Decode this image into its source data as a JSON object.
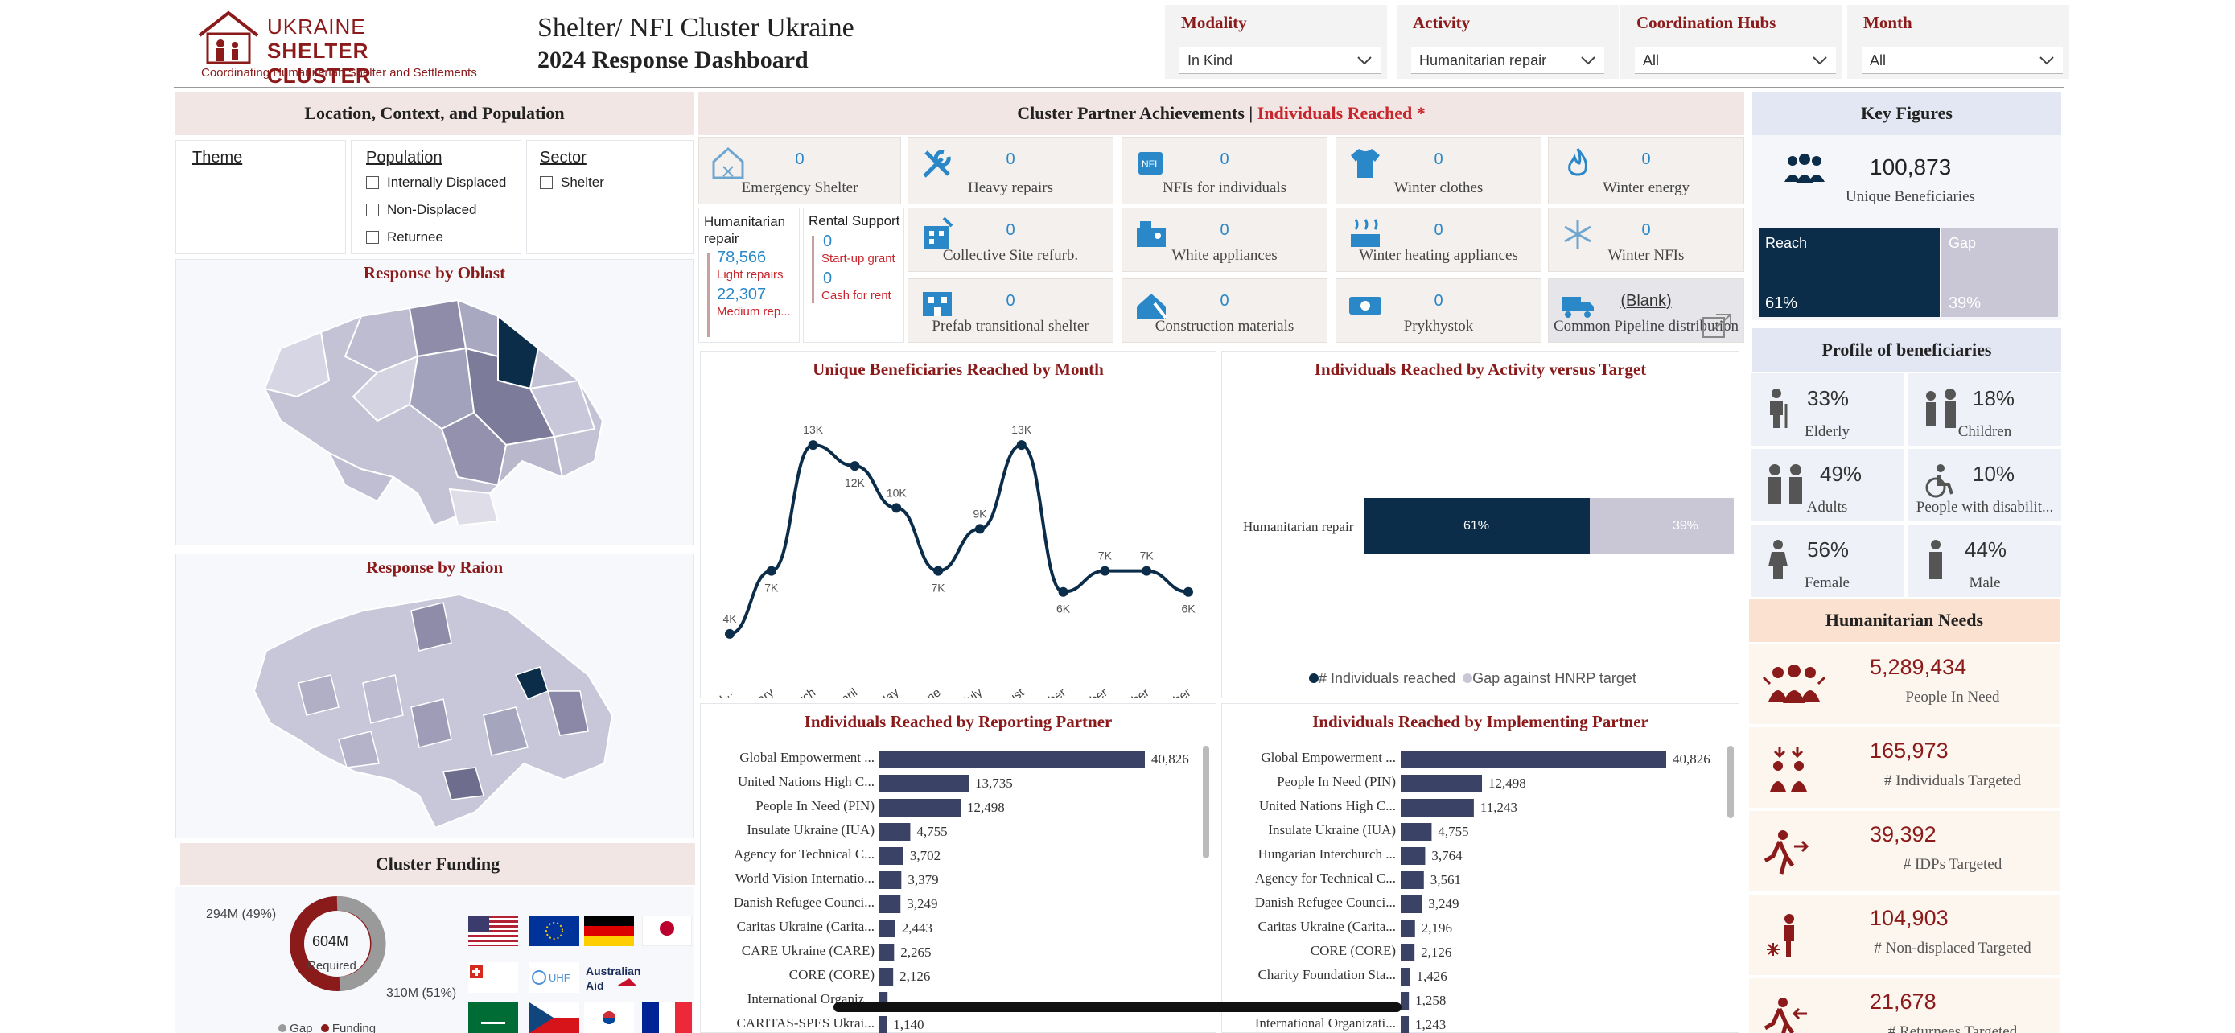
{
  "header": {
    "logo_line1": "UKRAINE",
    "logo_line2": "SHELTER CLUSTER",
    "logo_tagline": "Coordinating Humanitarian Shelter and Settlements",
    "title": "Shelter/ NFI Cluster Ukraine",
    "subtitle": "2024 Response Dashboard"
  },
  "filters": [
    {
      "label": "Modality",
      "value": "In Kind"
    },
    {
      "label": "Activity",
      "value": "Humanitarian repair"
    },
    {
      "label": "Coordination Hubs",
      "value": "All"
    },
    {
      "label": "Month",
      "value": "All"
    }
  ],
  "left": {
    "section_title": "Location, Context, and Population",
    "theme_label": "Theme",
    "population_label": "Population",
    "population_options": [
      "Internally Displaced",
      "Non-Displaced",
      "Returnee"
    ],
    "sector_label": "Sector",
    "sector_options": [
      "Shelter"
    ],
    "oblast_title": "Response by Oblast",
    "raion_title": "Response by Raion",
    "funding_title": "Cluster Funding",
    "funding": {
      "center_value": "604M",
      "center_label": "Required",
      "gap_label": "294M (49%)",
      "funding_label": "310M (51%)",
      "legend": [
        "Gap",
        "Funding"
      ]
    }
  },
  "achievements": {
    "title_prefix": "Cluster Partner Achievements | ",
    "title_highlight": "Individuals Reached *",
    "tiles": [
      {
        "label": "Emergency Shelter",
        "value": "0",
        "icon": "house-icon"
      },
      {
        "label": "Heavy repairs",
        "value": "0",
        "icon": "tools-icon"
      },
      {
        "label": "NFIs for individuals",
        "value": "0",
        "icon": "nfi-icon"
      },
      {
        "label": "Winter clothes",
        "value": "0",
        "icon": "shirt-icon"
      },
      {
        "label": "Winter energy",
        "value": "0",
        "icon": "flame-icon"
      },
      {
        "label": "Collective Site refurb.",
        "value": "0",
        "icon": "building-icon"
      },
      {
        "label": "White appliances",
        "value": "0",
        "icon": "appliance-icon"
      },
      {
        "label": "Winter heating appliances",
        "value": "0",
        "icon": "heating-icon"
      },
      {
        "label": "Winter NFIs",
        "value": "0",
        "icon": "snowflake-icon"
      },
      {
        "label": "Prefab transitional shelter",
        "value": "0",
        "icon": "prefab-icon"
      },
      {
        "label": "Construction materials",
        "value": "0",
        "icon": "construction-icon"
      },
      {
        "label": "Prykhystok",
        "value": "0",
        "icon": "cash-icon"
      },
      {
        "label": "Common Pipeline distribution",
        "value": "(Blank)",
        "icon": "truck-icon"
      }
    ],
    "hum_repair": {
      "title": "Humanitarian repair",
      "v1": "78,566",
      "l1": "Light repairs",
      "v2": "22,307",
      "l2": "Medium rep..."
    },
    "rental": {
      "title": "Rental Support",
      "v1": "0",
      "l1": "Start-up grant",
      "v2": "0",
      "l2": "Cash for rent"
    }
  },
  "line_chart_title": "Unique Beneficiaries Reached by Month",
  "activity_chart": {
    "title": "Individuals Reached by Activity versus Target",
    "category": "Humanitarian repair",
    "reach_label": "61%",
    "gap_label": "39%",
    "legend": [
      "# Individuals reached",
      "Gap against HNRP target"
    ]
  },
  "reporting_title": "Individuals Reached by Reporting Partner",
  "implementing_title": "Individuals Reached by Implementing Partner",
  "chart_data": [
    {
      "type": "line",
      "title": "Unique Beneficiaries Reached by Month",
      "categories": [
        "January",
        "February",
        "March",
        "April",
        "May",
        "June",
        "July",
        "August",
        "September",
        "October",
        "November",
        "December"
      ],
      "category_labels": [
        "Janu...",
        "February",
        "March",
        "April",
        "May",
        "June",
        "July",
        "August",
        "September",
        "October",
        "November",
        "December"
      ],
      "values": [
        4000,
        7000,
        13000,
        12000,
        10000,
        7000,
        9000,
        13000,
        6000,
        7000,
        7000,
        6000
      ],
      "data_labels": [
        "4K",
        "7K",
        "13K",
        "12K",
        "10K",
        "7K",
        "9K",
        "13K",
        "6K",
        "7K",
        "7K",
        "6K"
      ]
    },
    {
      "type": "bar",
      "title": "Individuals Reached by Activity versus Target",
      "categories": [
        "Humanitarian repair"
      ],
      "series": [
        {
          "name": "# Individuals reached",
          "values": [
            61
          ]
        },
        {
          "name": "Gap against HNRP target",
          "values": [
            39
          ]
        }
      ]
    },
    {
      "type": "bar",
      "title": "Individuals Reached by Reporting Partner",
      "categories": [
        "Global Empowerment ...",
        "United Nations High C...",
        "People In Need (PIN)",
        "Insulate Ukraine (IUA)",
        "Agency for Technical C...",
        "World Vision Internatio...",
        "Danish Refugee Counci...",
        "Caritas Ukraine (Carita...",
        "CARE Ukraine (CARE)",
        "CORE (CORE)",
        "International Organiz...",
        "CARITAS-SPES Ukrai..."
      ],
      "values": [
        40826,
        13735,
        12498,
        4755,
        3702,
        3379,
        3249,
        2443,
        2265,
        2126,
        1263,
        1140
      ],
      "value_labels": [
        "40,826",
        "13,735",
        "12,498",
        "4,755",
        "3,702",
        "3,379",
        "3,249",
        "2,443",
        "2,265",
        "2,126",
        "",
        "1,140"
      ]
    },
    {
      "type": "bar",
      "title": "Individuals Reached by Implementing Partner",
      "categories": [
        "Global Empowerment ...",
        "People In Need (PIN)",
        "United Nations High C...",
        "Insulate Ukraine (IUA)",
        "Hungarian Interchurch ...",
        "Agency for Technical C...",
        "Danish Refugee Counci...",
        "Caritas Ukraine (Carita...",
        "CORE (CORE)",
        "Charity Foundation Sta...",
        "",
        "International Organizati..."
      ],
      "values": [
        40826,
        12498,
        11243,
        4755,
        3764,
        3561,
        3249,
        2196,
        2126,
        1426,
        1258,
        1243
      ],
      "value_labels": [
        "40,826",
        "12,498",
        "11,243",
        "4,755",
        "3,764",
        "3,561",
        "3,249",
        "2,196",
        "2,126",
        "1,426",
        "1,258",
        "1,243"
      ]
    }
  ],
  "key_figures": {
    "title": "Key Figures",
    "unique_value": "100,873",
    "unique_label": "Unique Beneficiaries",
    "reach_label": "Reach",
    "reach_pct": "61%",
    "gap_label": "Gap",
    "gap_pct": "39%",
    "reach_fraction": 0.61
  },
  "profile": {
    "title": "Profile of beneficiaries",
    "cells": [
      {
        "pct": "33%",
        "label": "Elderly"
      },
      {
        "pct": "18%",
        "label": "Children"
      },
      {
        "pct": "49%",
        "label": "Adults"
      },
      {
        "pct": "10%",
        "label": "People with disabilit..."
      },
      {
        "pct": "56%",
        "label": "Female"
      },
      {
        "pct": "44%",
        "label": "Male"
      }
    ]
  },
  "needs": {
    "title": "Humanitarian Needs",
    "items": [
      {
        "value": "5,289,434",
        "label": "People In Need"
      },
      {
        "value": "165,973",
        "label": "# Individuals Targeted"
      },
      {
        "value": "39,392",
        "label": "# IDPs Targeted"
      },
      {
        "value": "104,903",
        "label": "# Non-displaced Targeted"
      },
      {
        "value": "21,678",
        "label": "# Returnees Targeted"
      }
    ]
  },
  "colors": {
    "brand": "#8b1a1a",
    "navy": "#0b2d4a",
    "bar": "#3a4266",
    "gap": "#c9c7d6",
    "accent": "#2a88c8"
  }
}
